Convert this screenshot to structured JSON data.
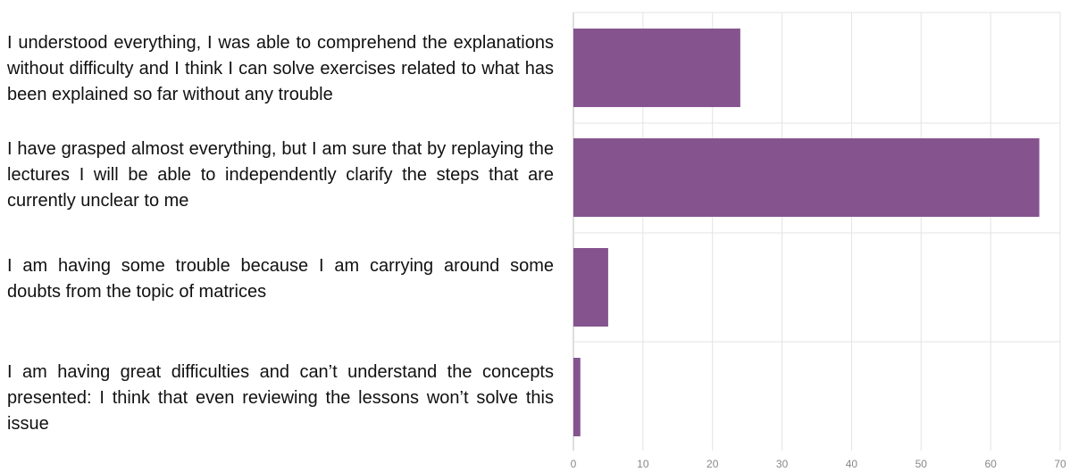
{
  "chart_data": {
    "type": "bar",
    "orientation": "horizontal",
    "categories": [
      "I understood everything, I was able to comprehend the explanations without difficulty and I think I can solve exercises related to what has been explained so far without any trouble",
      "I have grasped almost everything, but I am sure that by replaying the lectures I will be able to independently clarify the steps that are currently unclear to me",
      "I am having some trouble because I am carrying around some doubts from the topic of matrices",
      "I am having great difficulties and can’t understand the concepts presented: I think that even reviewing the lessons won’t solve this issue"
    ],
    "values": [
      24,
      67,
      5,
      1
    ],
    "xlim": [
      0,
      70
    ],
    "xticks": [
      "0",
      "10",
      "20",
      "30",
      "40",
      "50",
      "60",
      "70"
    ],
    "grid": true,
    "bar_color": "#85548f",
    "title": "",
    "xlabel": "",
    "ylabel": ""
  }
}
